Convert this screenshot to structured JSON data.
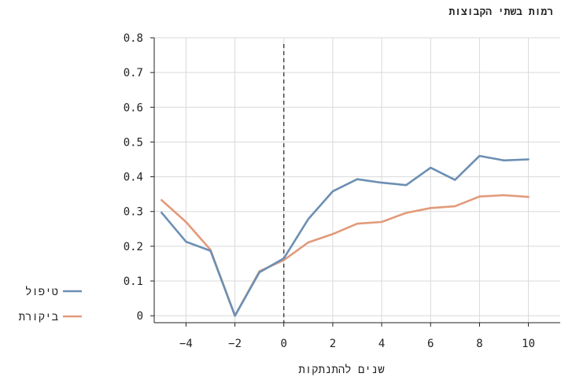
{
  "chart_data": {
    "type": "line",
    "title": "רמות בשתי הקבוצות",
    "xlabel": "שנים להתנתקות",
    "ylabel": "",
    "xlim": [
      -5.3,
      11.3
    ],
    "ylim": [
      -0.02,
      0.8
    ],
    "xticks": [
      -4,
      -2,
      0,
      2,
      4,
      6,
      8,
      10
    ],
    "xtick_labels": [
      "−4",
      "−2",
      "0",
      "2",
      "4",
      "6",
      "8",
      "10"
    ],
    "yticks": [
      0,
      0.1,
      0.2,
      0.3,
      0.4,
      0.5,
      0.6,
      0.7,
      0.8
    ],
    "ytick_labels": [
      "0",
      "0.1",
      "0.2",
      "0.3",
      "0.4",
      "0.5",
      "0.6",
      "0.7",
      "0.8"
    ],
    "grid": true,
    "reference_line_x": 0,
    "legend_position": "left",
    "x": [
      -5,
      -4,
      -3,
      -2,
      -1,
      0,
      1,
      2,
      3,
      4,
      5,
      6,
      7,
      8,
      9,
      10
    ],
    "series": [
      {
        "name": "טיפול",
        "color": "#6c8fb3",
        "values": [
          0.297,
          0.213,
          0.187,
          0.0,
          0.125,
          0.165,
          0.278,
          0.358,
          0.393,
          0.383,
          0.376,
          0.426,
          0.391,
          0.46,
          0.447,
          0.45
        ]
      },
      {
        "name": "ביקורת",
        "color": "#e29a7a",
        "values": [
          0.333,
          0.27,
          0.19,
          0.0,
          0.128,
          0.16,
          0.211,
          0.235,
          0.265,
          0.27,
          0.296,
          0.31,
          0.315,
          0.343,
          0.347,
          0.342
        ]
      }
    ]
  }
}
